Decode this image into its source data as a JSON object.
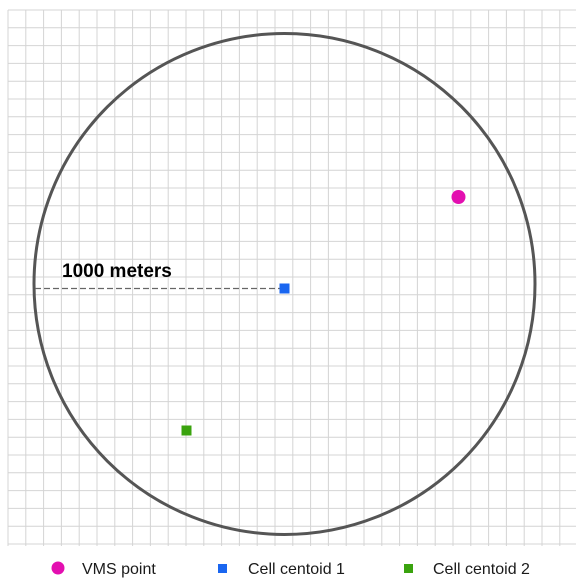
{
  "diagram": {
    "radius_label": "1000 meters",
    "colors": {
      "grid": "#d4d4d4",
      "circle": "#555555",
      "vms_point": "#e30fb0",
      "cell_centroid_1": "#1a66f0",
      "cell_centroid_2": "#3aa30e"
    }
  },
  "legend": {
    "items": [
      {
        "label": "VMS point",
        "marker": "circle"
      },
      {
        "label": "Cell centoid 1",
        "marker": "square"
      },
      {
        "label": "Cell centoid 2",
        "marker": "square"
      }
    ]
  }
}
